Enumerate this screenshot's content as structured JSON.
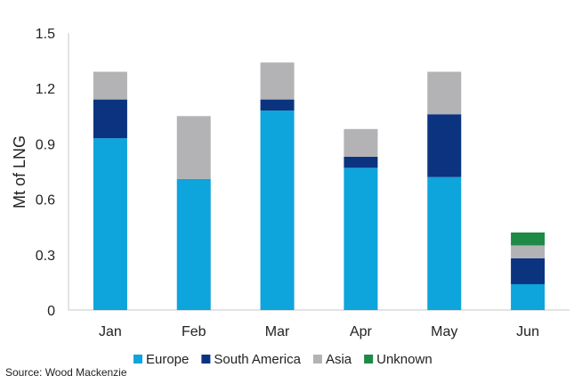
{
  "chart_data": {
    "type": "bar",
    "stacked": true,
    "title": "",
    "xlabel": "",
    "ylabel": "Mt of LNG",
    "ylim": [
      0,
      1.5
    ],
    "yticks": [
      "0",
      "0.3",
      "0.6",
      "0.9",
      "1.2",
      "1.5"
    ],
    "ytick_values": [
      0,
      0.3,
      0.6,
      0.9,
      1.2,
      1.5
    ],
    "grid": false,
    "legend_position": "bottom",
    "categories": [
      "Jan",
      "Feb",
      "Mar",
      "Apr",
      "May",
      "Jun"
    ],
    "series": [
      {
        "name": "Europe",
        "color": "#0ea4dc",
        "values": [
          0.93,
          0.71,
          1.08,
          0.77,
          0.72,
          0.14
        ]
      },
      {
        "name": "South America",
        "color": "#0b3380",
        "values": [
          0.21,
          0.0,
          0.06,
          0.06,
          0.34,
          0.14
        ]
      },
      {
        "name": "Asia",
        "color": "#b3b3b5",
        "values": [
          0.15,
          0.34,
          0.2,
          0.15,
          0.23,
          0.07
        ]
      },
      {
        "name": "Unknown",
        "color": "#1d8a46",
        "values": [
          0.0,
          0.0,
          0.0,
          0.0,
          0.0,
          0.07
        ]
      }
    ]
  },
  "source": "Source: Wood Mackenzie"
}
